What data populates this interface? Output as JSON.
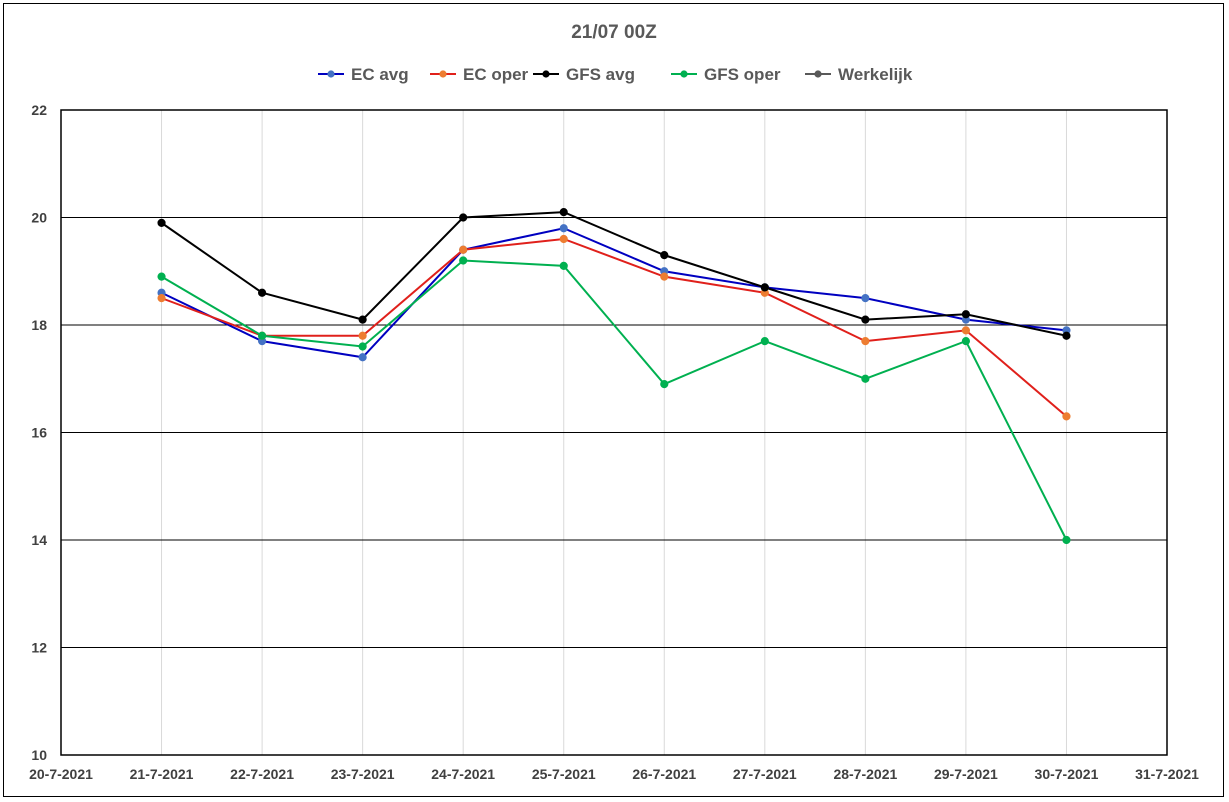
{
  "chart_data": {
    "type": "line",
    "title": "21/07 00Z",
    "xlabel": "",
    "ylabel": "",
    "x": [
      "21-7-2021",
      "22-7-2021",
      "23-7-2021",
      "24-7-2021",
      "25-7-2021",
      "26-7-2021",
      "27-7-2021",
      "28-7-2021",
      "29-7-2021",
      "30-7-2021"
    ],
    "x_ticks": [
      "20-7-2021",
      "21-7-2021",
      "22-7-2021",
      "23-7-2021",
      "24-7-2021",
      "25-7-2021",
      "26-7-2021",
      "27-7-2021",
      "28-7-2021",
      "29-7-2021",
      "30-7-2021",
      "31-7-2021"
    ],
    "xlim": [
      "20-7-2021",
      "31-7-2021"
    ],
    "ylim": [
      10,
      22
    ],
    "y_ticks": [
      10,
      12,
      14,
      16,
      18,
      20,
      22
    ],
    "grid": true,
    "legend_position": "top",
    "series": [
      {
        "name": "EC avg",
        "line_color": "#0000c0",
        "marker_color": "#4472c4",
        "values": [
          18.6,
          17.7,
          17.4,
          19.4,
          19.8,
          19.0,
          18.7,
          18.5,
          18.1,
          17.9
        ]
      },
      {
        "name": "EC oper",
        "line_color": "#e0201b",
        "marker_color": "#ed7d31",
        "values": [
          18.5,
          17.8,
          17.8,
          19.4,
          19.6,
          18.9,
          18.6,
          17.7,
          17.9,
          16.3
        ]
      },
      {
        "name": "GFS avg",
        "line_color": "#000000",
        "marker_color": "#000000",
        "values": [
          19.9,
          18.6,
          18.1,
          20.0,
          20.1,
          19.3,
          18.7,
          18.1,
          18.2,
          17.8
        ]
      },
      {
        "name": "GFS oper",
        "line_color": "#00b050",
        "marker_color": "#00b050",
        "values": [
          18.9,
          17.8,
          17.6,
          19.2,
          19.1,
          16.9,
          17.7,
          17.0,
          17.7,
          14.0
        ]
      },
      {
        "name": "Werkelijk",
        "line_color": "#595959",
        "marker_color": "#595959",
        "values": [
          null,
          null,
          null,
          null,
          null,
          null,
          null,
          null,
          null,
          null
        ]
      }
    ]
  }
}
